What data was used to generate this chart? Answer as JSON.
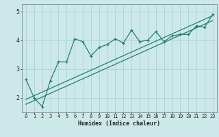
{
  "title": "",
  "xlabel": "Humidex (Indice chaleur)",
  "ylabel": "",
  "bg_color": "#cce8e8",
  "line_color": "#1a7a6e",
  "grid_color": "#aad4d4",
  "xlim": [
    -0.5,
    23.5
  ],
  "ylim": [
    1.5,
    5.25
  ],
  "yticks": [
    2,
    3,
    4,
    5
  ],
  "xticks": [
    0,
    1,
    2,
    3,
    4,
    5,
    6,
    7,
    8,
    9,
    10,
    11,
    12,
    13,
    14,
    15,
    16,
    17,
    18,
    19,
    20,
    21,
    22,
    23
  ],
  "data_line": [
    [
      0,
      2.65
    ],
    [
      1,
      2.0
    ],
    [
      2,
      1.7
    ],
    [
      3,
      2.6
    ],
    [
      4,
      3.25
    ],
    [
      5,
      3.25
    ],
    [
      6,
      4.05
    ],
    [
      7,
      3.95
    ],
    [
      8,
      3.45
    ],
    [
      9,
      3.75
    ],
    [
      10,
      3.85
    ],
    [
      11,
      4.05
    ],
    [
      12,
      3.9
    ],
    [
      13,
      4.35
    ],
    [
      14,
      3.95
    ],
    [
      15,
      4.0
    ],
    [
      16,
      4.3
    ],
    [
      17,
      3.95
    ],
    [
      18,
      4.15
    ],
    [
      19,
      4.2
    ],
    [
      20,
      4.2
    ],
    [
      21,
      4.5
    ],
    [
      22,
      4.45
    ],
    [
      23,
      4.9
    ]
  ],
  "regression_line1": [
    [
      0,
      1.78
    ],
    [
      23,
      4.68
    ]
  ],
  "regression_line2": [
    [
      0,
      1.95
    ],
    [
      23,
      4.85
    ]
  ],
  "xlabel_fontsize": 6,
  "tick_fontsize": 5,
  "ytick_fontsize": 6
}
